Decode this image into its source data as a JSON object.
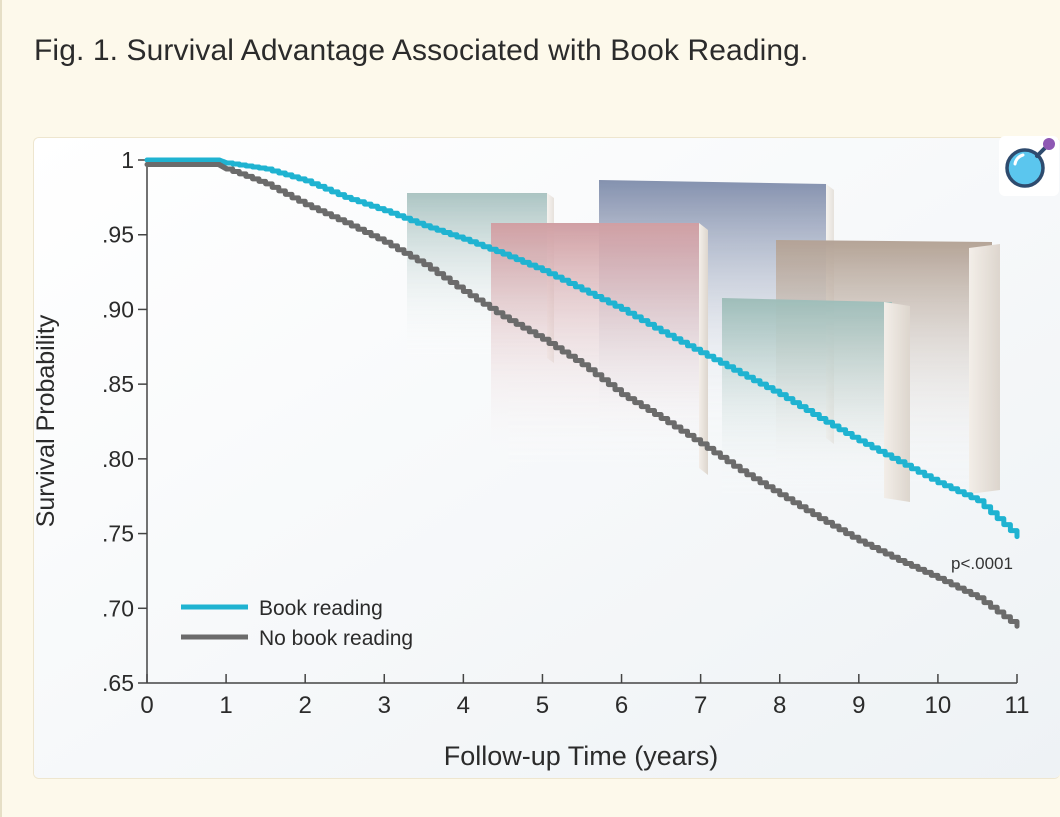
{
  "page": {
    "title": "Fig. 1. Survival Advantage Associated with Book Reading."
  },
  "colors": {
    "background": "#fdf9eb",
    "book_reading": "#1fb3d1",
    "no_book_reading": "#6b6b6b",
    "axis": "#444444"
  },
  "icons": {
    "zoom": "magnifier-lens-icon"
  },
  "chart_data": {
    "type": "line",
    "title": "",
    "xlabel": "Follow-up Time (years)",
    "ylabel": "Survival Probability",
    "xlim": [
      0,
      11
    ],
    "ylim": [
      0.65,
      1
    ],
    "x_ticks": [
      0,
      1,
      2,
      3,
      4,
      5,
      6,
      7,
      8,
      9,
      10,
      11
    ],
    "x_tick_labels": [
      "0",
      "1",
      "2",
      "3",
      "4",
      "5",
      "6",
      "7",
      "8",
      "9",
      "10",
      "11"
    ],
    "y_ticks": [
      1,
      0.95,
      0.9,
      0.85,
      0.8,
      0.75,
      0.7,
      0.65
    ],
    "y_tick_labels": [
      "1",
      ".95",
      ".90",
      ".85",
      ".80",
      ".75",
      ".70",
      ".65"
    ],
    "grid": false,
    "legend_position": "bottom-left",
    "annotation": "p<.0001",
    "series": [
      {
        "name": "Book reading",
        "color": "#1fb3d1",
        "x": [
          0,
          0.5,
          0.9,
          1,
          1.5,
          2,
          2.5,
          3,
          3.5,
          4,
          4.5,
          5,
          5.5,
          6,
          6.5,
          7,
          7.5,
          8,
          8.5,
          9,
          9.5,
          10,
          10.5,
          11
        ],
        "y": [
          1.0,
          1.0,
          1.0,
          0.998,
          0.994,
          0.986,
          0.975,
          0.966,
          0.956,
          0.947,
          0.937,
          0.926,
          0.913,
          0.9,
          0.885,
          0.871,
          0.857,
          0.843,
          0.827,
          0.812,
          0.798,
          0.784,
          0.772,
          0.748
        ]
      },
      {
        "name": "No book reading",
        "color": "#6b6b6b",
        "x": [
          0,
          0.5,
          0.9,
          1,
          1.5,
          2,
          2.5,
          3,
          3.5,
          4,
          4.5,
          5,
          5.5,
          6,
          6.5,
          7,
          7.5,
          8,
          8.5,
          9,
          9.5,
          10,
          10.5,
          11
        ],
        "y": [
          0.997,
          0.997,
          0.997,
          0.994,
          0.984,
          0.97,
          0.958,
          0.945,
          0.93,
          0.912,
          0.895,
          0.88,
          0.863,
          0.843,
          0.827,
          0.81,
          0.792,
          0.776,
          0.76,
          0.745,
          0.732,
          0.72,
          0.707,
          0.688
        ]
      }
    ]
  }
}
